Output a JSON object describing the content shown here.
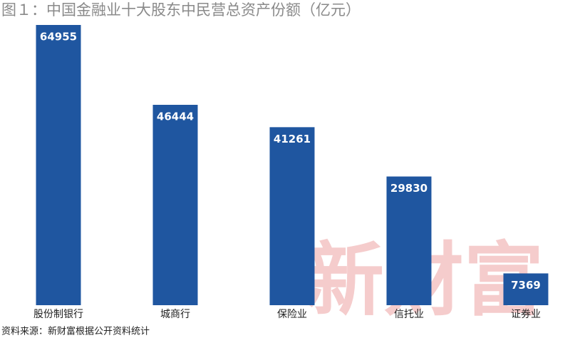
{
  "chart_data": {
    "type": "bar",
    "title": "图１：中国金融业十大股东中民营总资产份额（亿元）",
    "categories": [
      "股份制银行",
      "城商行",
      "保险业",
      "信托业",
      "证券业"
    ],
    "values": [
      64955,
      46444,
      41261,
      29830,
      7369
    ],
    "color": "#1f56a0",
    "source": "资料来源：新财富根据公开资料统计",
    "watermark": "新财富"
  }
}
